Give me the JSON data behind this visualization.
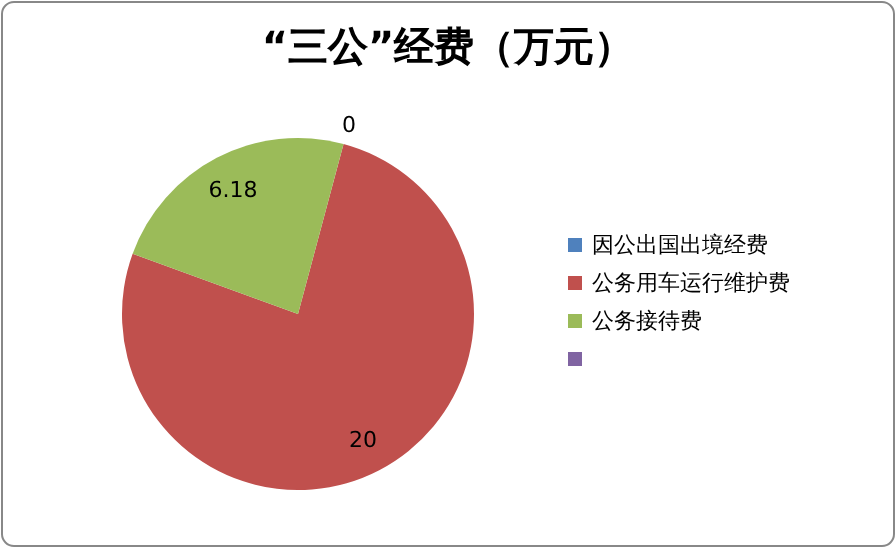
{
  "chart_data": {
    "type": "pie",
    "title": "“三公”经费（万元）",
    "categories": [
      "因公出国出境经费",
      "公务用车运行维护费",
      "公务接待费",
      null
    ],
    "values": [
      0,
      20,
      6.18,
      null
    ],
    "colors": [
      "#4f81bd",
      "#c0504d",
      "#9bbb59",
      "#8064a2"
    ],
    "value_labels": [
      "0",
      "20",
      "6.18",
      null
    ],
    "legend": "right"
  }
}
